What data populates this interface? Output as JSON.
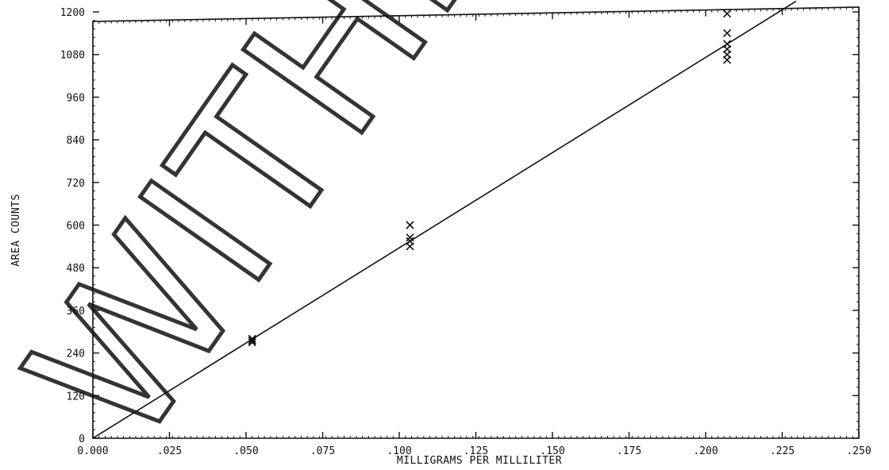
{
  "chart_data": {
    "type": "scatter",
    "title": "",
    "xlabel": "MILLIGRAMS PER MILLILITER",
    "ylabel": "AREA COUNTS",
    "xlim": [
      0,
      0.25
    ],
    "ylim": [
      0,
      1200
    ],
    "x_ticks": [
      0,
      0.025,
      0.05,
      0.075,
      0.1,
      0.125,
      0.15,
      0.175,
      0.2,
      0.225,
      0.25
    ],
    "x_tick_labels": [
      "0.000",
      ".025",
      ".050",
      ".075",
      ".100",
      ".125",
      ".150",
      ".175",
      ".200",
      ".225",
      ".250"
    ],
    "y_ticks": [
      0,
      120,
      240,
      360,
      480,
      600,
      720,
      840,
      960,
      1080,
      1200
    ],
    "y_tick_labels": [
      "0",
      "120",
      "240",
      "360",
      "480",
      "600",
      "720",
      "840",
      "960",
      "1080",
      "1200"
    ],
    "grid": false,
    "marker": "x",
    "points": [
      {
        "x": 0.052,
        "y": 270
      },
      {
        "x": 0.052,
        "y": 275
      },
      {
        "x": 0.052,
        "y": 280
      },
      {
        "x": 0.1035,
        "y": 540
      },
      {
        "x": 0.1035,
        "y": 555
      },
      {
        "x": 0.1035,
        "y": 565
      },
      {
        "x": 0.1035,
        "y": 600
      },
      {
        "x": 0.207,
        "y": 1065
      },
      {
        "x": 0.207,
        "y": 1080
      },
      {
        "x": 0.207,
        "y": 1095
      },
      {
        "x": 0.207,
        "y": 1110
      },
      {
        "x": 0.207,
        "y": 1140
      },
      {
        "x": 0.207,
        "y": 1195
      }
    ],
    "fit_line": {
      "x": [
        0,
        0.2295
      ],
      "y": [
        0,
        1230
      ]
    },
    "watermark": "WITHD"
  }
}
